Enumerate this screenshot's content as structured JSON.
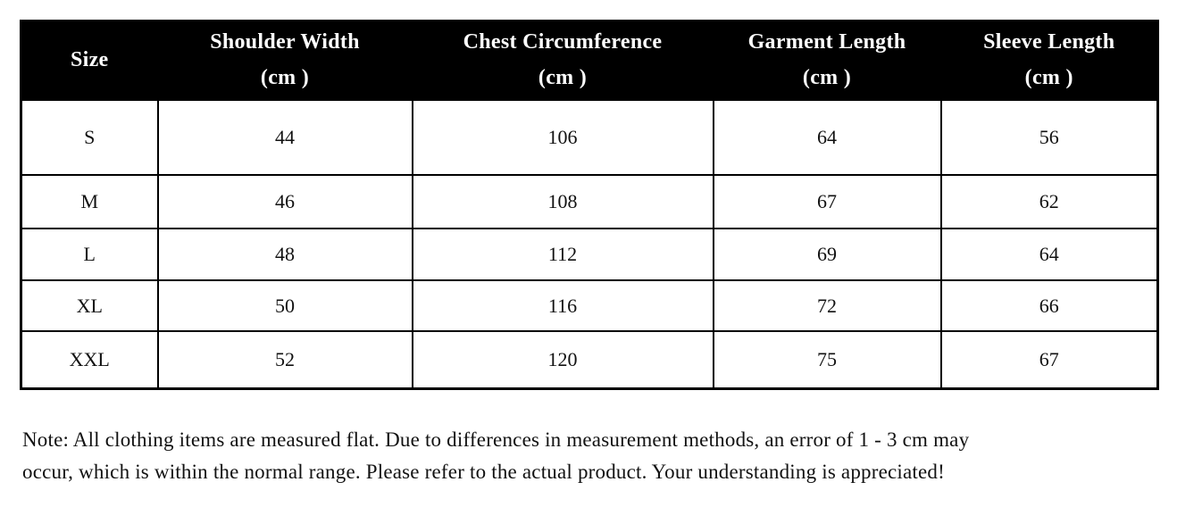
{
  "table": {
    "header": [
      {
        "label": "Size",
        "unit": ""
      },
      {
        "label": "Shoulder Width",
        "unit": "(cm )"
      },
      {
        "label": "Chest Circumference",
        "unit": "(cm )"
      },
      {
        "label": "Garment Length",
        "unit": "(cm )"
      },
      {
        "label": "Sleeve Length",
        "unit": "(cm )"
      }
    ],
    "rows": [
      {
        "cells": [
          "S",
          "44",
          "106",
          "64",
          "56"
        ]
      },
      {
        "cells": [
          "M",
          "46",
          "108",
          "67",
          "62"
        ]
      },
      {
        "cells": [
          "L",
          "48",
          "112",
          "69",
          "64"
        ]
      },
      {
        "cells": [
          "XL",
          "50",
          "116",
          "72",
          "66"
        ]
      },
      {
        "cells": [
          "XXL",
          "52",
          "120",
          "75",
          "67"
        ]
      }
    ]
  },
  "note": {
    "line1": "Note: All clothing items are measured flat. Due to differences in measurement methods, an error of 1 - 3 cm may",
    "line2": "occur, which is within the normal range. Please refer to the actual product. Your understanding is appreciated!"
  },
  "colors": {
    "header_bg": "#000000",
    "header_text": "#ffffff",
    "border": "#000000",
    "body_text": "#111111",
    "page_bg": "#ffffff"
  }
}
